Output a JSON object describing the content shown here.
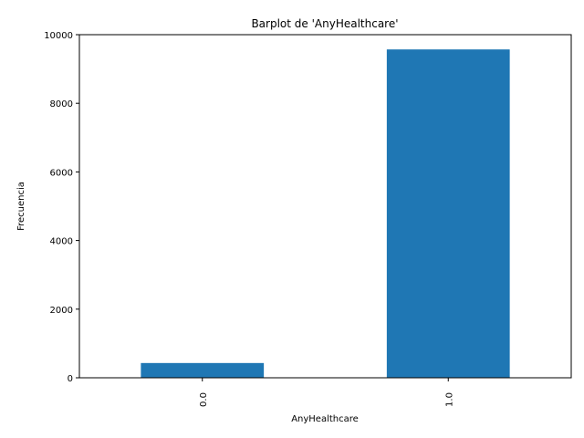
{
  "chart_data": {
    "type": "bar",
    "title": "Barplot de 'AnyHealthcare'",
    "xlabel": "AnyHealthcare",
    "ylabel": "Frecuencia",
    "categories": [
      "0.0",
      "1.0"
    ],
    "values": [
      430,
      9570
    ],
    "ylim": [
      0,
      10000
    ],
    "yticks": [
      0,
      2000,
      4000,
      6000,
      8000,
      10000
    ],
    "ytick_labels": [
      "0",
      "2000",
      "4000",
      "6000",
      "8000",
      "10000"
    ],
    "bar_color": "#1f77b4",
    "grid": false,
    "legend": "none"
  }
}
